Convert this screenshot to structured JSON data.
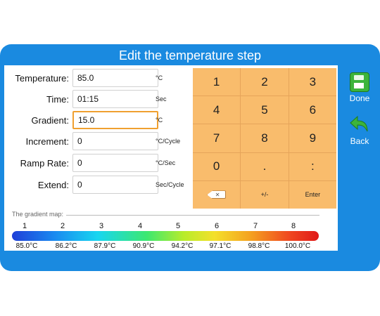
{
  "title": "Edit the temperature step",
  "fields": [
    {
      "label": "Temperature:",
      "value": "85.0",
      "unit": "°C",
      "focused": false
    },
    {
      "label": "Time:",
      "value": "01:15",
      "unit": "Sec",
      "focused": false
    },
    {
      "label": "Gradient:",
      "value": "15.0",
      "unit": "°C",
      "focused": true
    },
    {
      "label": "Increment:",
      "value": "0",
      "unit": "°C/Cycle",
      "focused": false
    },
    {
      "label": "Ramp Rate:",
      "value": "0",
      "unit": "°C/Sec",
      "focused": false
    },
    {
      "label": "Extend:",
      "value": "0",
      "unit": "Sec/Cycle",
      "focused": false
    }
  ],
  "keypad": {
    "keys": [
      "1",
      "2",
      "3",
      "4",
      "5",
      "6",
      "7",
      "8",
      "9",
      "0",
      ".",
      ":",
      "",
      "+/-",
      "Enter"
    ],
    "backspace_icon": "backspace-icon",
    "backspace_glyph": "✕"
  },
  "gradient_map": {
    "label": "The gradient map:",
    "wells": [
      "1",
      "2",
      "3",
      "4",
      "5",
      "6",
      "7",
      "8"
    ],
    "temps": [
      "85.0°C",
      "86.2°C",
      "87.9°C",
      "90.9°C",
      "94.2°C",
      "97.1°C",
      "98.8°C",
      "100.0°C"
    ],
    "colors": [
      "#1f3fd8",
      "#1a8af0",
      "#18d6f0",
      "#3ce870",
      "#b8ec2a",
      "#f4e02a",
      "#f4a020",
      "#e01818"
    ]
  },
  "side": {
    "done_label": "Done",
    "done_icon": "save-icon",
    "back_label": "Back",
    "back_icon": "back-arrow-icon"
  },
  "colors": {
    "frame": "#1a8ae0",
    "key": "#f9bc6c",
    "focus_border": "#f0a030",
    "done_green": "#3cb43c"
  }
}
